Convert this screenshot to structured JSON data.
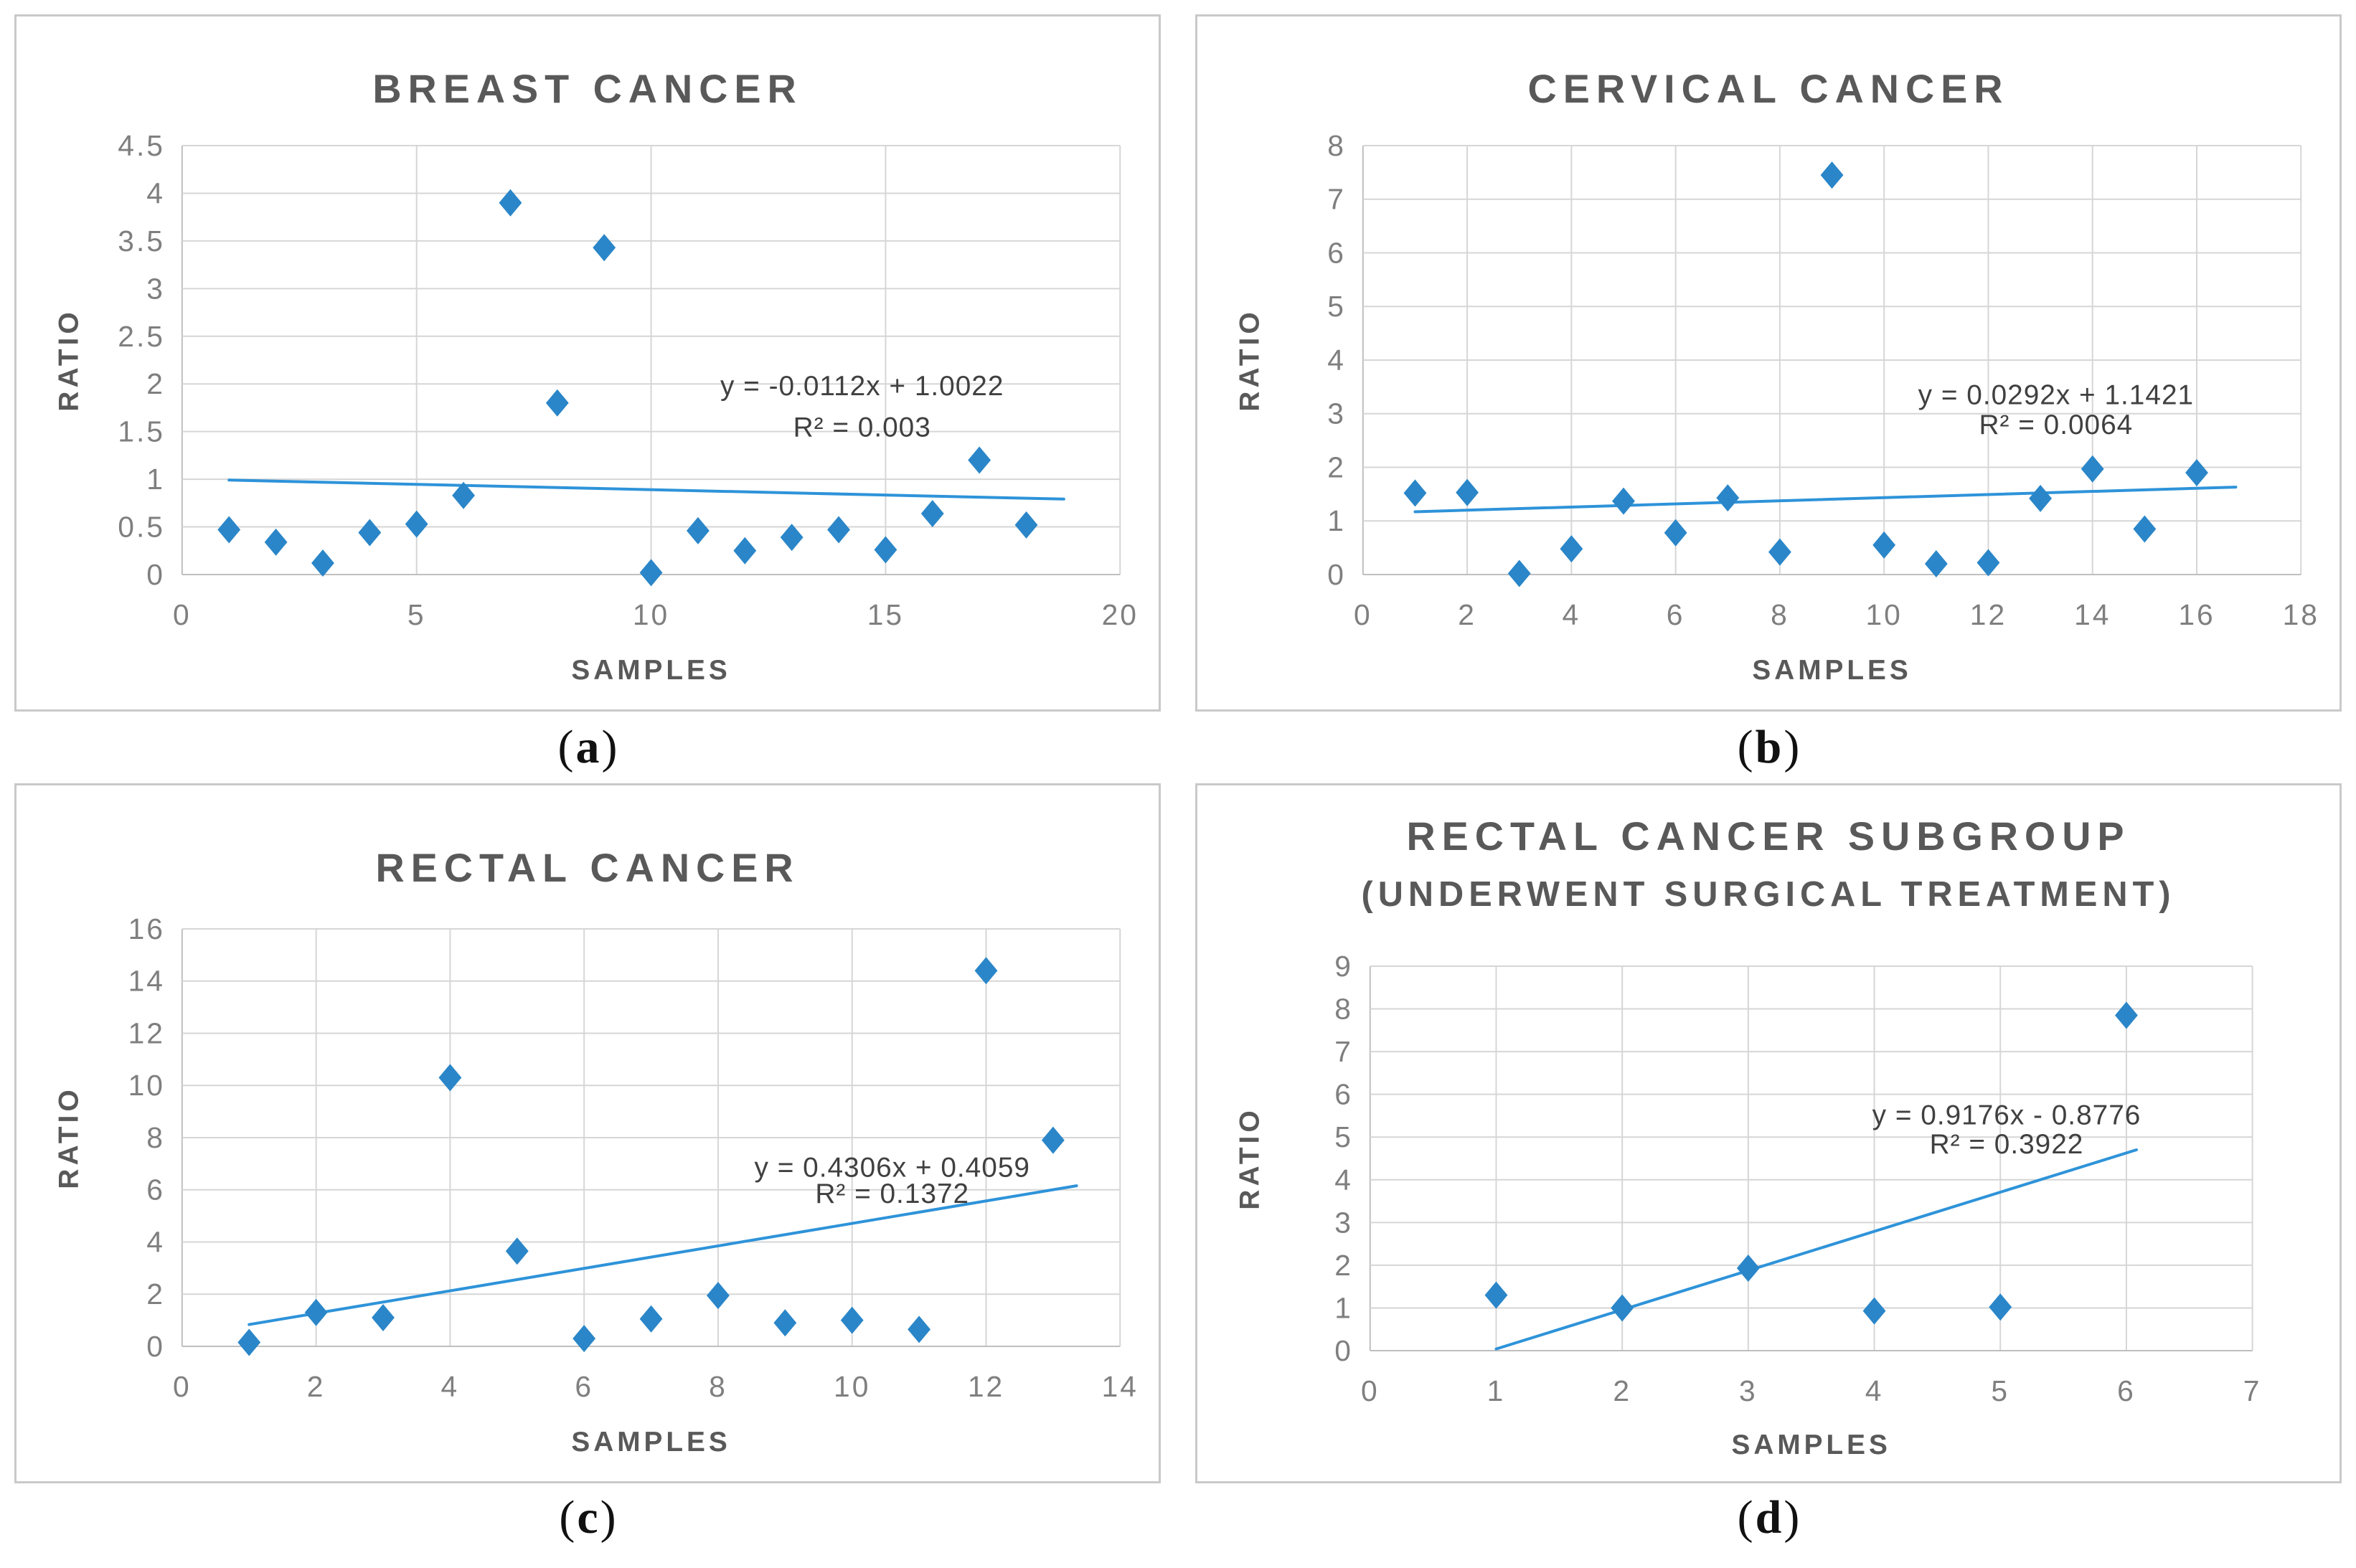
{
  "figure": {
    "colors": {
      "marker": "#2A86C8",
      "trendline": "#2E93D9",
      "gridline": "#D6D6D6",
      "axis_line": "#BFBFBF",
      "tick_label": "#7F7F7F",
      "axis_title": "#595959",
      "chart_title": "#595959",
      "equation_text": "#404040",
      "panel_border": "#C9C9C9",
      "background": "#FFFFFF"
    }
  },
  "chart_data": [
    {
      "id": "breast-cancer",
      "type": "scatter",
      "title_lines": [
        "BREAST CANCER"
      ],
      "caption": {
        "open": "(",
        "letter": "a",
        "close": ")"
      },
      "xlabel": "SAMPLES",
      "ylabel": "RATIO",
      "xlim": [
        0,
        20
      ],
      "xstep": 5,
      "ylim": [
        0,
        4.5
      ],
      "ystep": 0.5,
      "grid": true,
      "points": [
        [
          1,
          0.47
        ],
        [
          2,
          0.34
        ],
        [
          3,
          0.12
        ],
        [
          4,
          0.44
        ],
        [
          5,
          0.53
        ],
        [
          6,
          0.83
        ],
        [
          7,
          3.9
        ],
        [
          8,
          1.8
        ],
        [
          9,
          3.43
        ],
        [
          10,
          0.02
        ],
        [
          11,
          0.46
        ],
        [
          12,
          0.25
        ],
        [
          13,
          0.39
        ],
        [
          14,
          0.47
        ],
        [
          15,
          0.26
        ],
        [
          16,
          0.64
        ],
        [
          17,
          1.2
        ],
        [
          18,
          0.52
        ]
      ],
      "trendline": {
        "slope": -0.0112,
        "intercept": 1.0022,
        "x_start": 1,
        "x_end": 18.8
      },
      "equation": "y = -0.0112x + 1.0022",
      "r_squared": "R² = 0.003",
      "equation_pos": {
        "x": 14.5,
        "y": 1.88,
        "y2": 1.45
      }
    },
    {
      "id": "cervical-cancer",
      "type": "scatter",
      "title_lines": [
        "CERVICAL CANCER"
      ],
      "caption": {
        "open": "(",
        "letter": "b",
        "close": ")"
      },
      "xlabel": "SAMPLES",
      "ylabel": "RATIO",
      "xlim": [
        0,
        18
      ],
      "xstep": 2,
      "ylim": [
        0,
        8
      ],
      "ystep": 1,
      "grid": true,
      "points": [
        [
          1,
          1.52
        ],
        [
          2,
          1.53
        ],
        [
          3,
          0.02
        ],
        [
          4,
          0.48
        ],
        [
          5,
          1.37
        ],
        [
          6,
          0.78
        ],
        [
          7,
          1.43
        ],
        [
          8,
          0.42
        ],
        [
          9,
          7.45
        ],
        [
          10,
          0.55
        ],
        [
          11,
          0.2
        ],
        [
          12,
          0.22
        ],
        [
          13,
          1.42
        ],
        [
          14,
          1.97
        ],
        [
          15,
          0.85
        ],
        [
          16,
          1.9
        ]
      ],
      "trendline": {
        "slope": 0.0292,
        "intercept": 1.1421,
        "x_start": 1,
        "x_end": 16.75
      },
      "equation": "y = 0.0292x + 1.1421",
      "r_squared": "R² = 0.0064",
      "equation_pos": {
        "x": 13.3,
        "y": 3.18,
        "y2": 2.62
      }
    },
    {
      "id": "rectal-cancer",
      "type": "scatter",
      "title_lines": [
        "RECTAL CANCER"
      ],
      "caption": {
        "open": "(",
        "letter": "c",
        "close": ")"
      },
      "xlabel": "SAMPLES",
      "ylabel": "RATIO",
      "xlim": [
        0,
        14
      ],
      "xstep": 2,
      "ylim": [
        0,
        16
      ],
      "ystep": 2,
      "grid": true,
      "points": [
        [
          1,
          0.15
        ],
        [
          2,
          1.3
        ],
        [
          3,
          1.1
        ],
        [
          4,
          10.3
        ],
        [
          5,
          3.65
        ],
        [
          6,
          0.3
        ],
        [
          7,
          1.05
        ],
        [
          8,
          1.95
        ],
        [
          9,
          0.9
        ],
        [
          10,
          1.0
        ],
        [
          11,
          0.65
        ],
        [
          12,
          14.4
        ],
        [
          13,
          7.9
        ]
      ],
      "trendline": {
        "slope": 0.4306,
        "intercept": 0.4059,
        "x_start": 1,
        "x_end": 13.35
      },
      "equation": "y = 0.4306x + 0.4059",
      "r_squared": "R² = 0.1372",
      "equation_pos": {
        "x": 10.6,
        "y": 6.5,
        "y2": 5.5
      }
    },
    {
      "id": "rectal-cancer-subgroup",
      "type": "scatter",
      "title_lines": [
        "RECTAL CANCER SUBGROUP",
        "(UNDERWENT SURGICAL TREATMENT)"
      ],
      "caption": {
        "open": "(",
        "letter": "d",
        "close": ")"
      },
      "xlabel": "SAMPLES",
      "ylabel": "RATIO",
      "xlim": [
        0,
        7
      ],
      "xstep": 1,
      "ylim": [
        0,
        9
      ],
      "ystep": 1,
      "grid": true,
      "points": [
        [
          1,
          1.3
        ],
        [
          2,
          1.0
        ],
        [
          3,
          1.93
        ],
        [
          4,
          0.93
        ],
        [
          5,
          1.02
        ],
        [
          6,
          7.85
        ]
      ],
      "trendline": {
        "slope": 0.9176,
        "intercept": -0.8776,
        "x_start": 1,
        "x_end": 6.08
      },
      "equation": "y = 0.9176x - 0.8776",
      "r_squared": "R² = 0.3922",
      "equation_pos": {
        "x": 5.05,
        "y": 5.3,
        "y2": 4.62
      }
    }
  ]
}
